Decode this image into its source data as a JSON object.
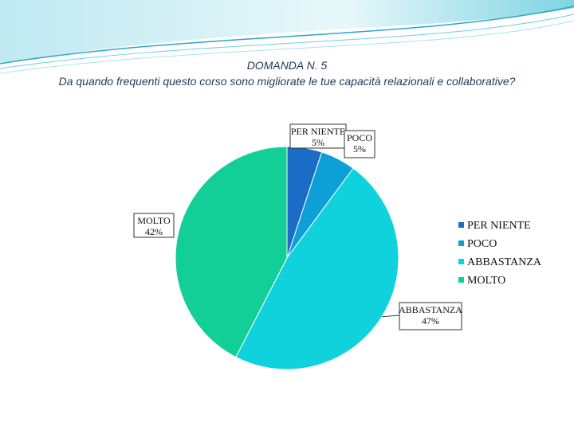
{
  "slide": {
    "title_line1": "DOMANDA N. 5",
    "title_line2": "Da quando frequenti questo corso sono migliorate le tue capacità relazionali e collaborative?"
  },
  "colors": {
    "PER NIENTE": "#1a6cc6",
    "POCO": "#0da0d8",
    "ABBASTANZA": "#10d2dc",
    "MOLTO": "#12cf98",
    "wave_light": "#d9f3f6",
    "wave_mid": "#6cd0de",
    "wave_dark": "#2aa6c8"
  },
  "chart_data": {
    "type": "pie",
    "title": "",
    "categories": [
      "PER NIENTE",
      "POCO",
      "ABBASTANZA",
      "MOLTO"
    ],
    "values": [
      5,
      5,
      47,
      42
    ],
    "data_labels": [
      {
        "name": "PER NIENTE",
        "pct": "5%"
      },
      {
        "name": "POCO",
        "pct": "5%"
      },
      {
        "name": "ABBASTANZA",
        "pct": "47%"
      },
      {
        "name": "MOLTO",
        "pct": "42%"
      }
    ],
    "legend": [
      "PER NIENTE",
      "POCO",
      "ABBASTANZA",
      "MOLTO"
    ],
    "legend_position": "right",
    "start_angle": "12 o'clock",
    "direction": "clockwise"
  }
}
